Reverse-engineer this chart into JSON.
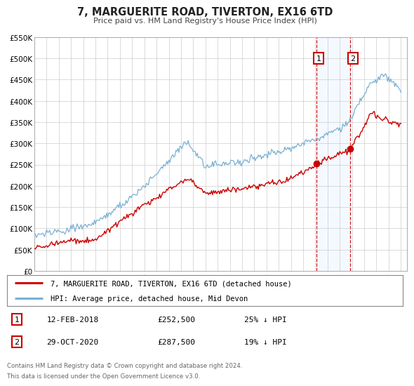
{
  "title": "7, MARGUERITE ROAD, TIVERTON, EX16 6TD",
  "subtitle": "Price paid vs. HM Land Registry's House Price Index (HPI)",
  "ylim": [
    0,
    550000
  ],
  "yticks": [
    0,
    50000,
    100000,
    150000,
    200000,
    250000,
    300000,
    350000,
    400000,
    450000,
    500000,
    550000
  ],
  "ytick_labels": [
    "£0",
    "£50K",
    "£100K",
    "£150K",
    "£200K",
    "£250K",
    "£300K",
    "£350K",
    "£400K",
    "£450K",
    "£500K",
    "£550K"
  ],
  "xlim_start": 1995.0,
  "xlim_end": 2025.5,
  "xticks": [
    1995,
    1996,
    1997,
    1998,
    1999,
    2000,
    2001,
    2002,
    2003,
    2004,
    2005,
    2006,
    2007,
    2008,
    2009,
    2010,
    2011,
    2012,
    2013,
    2014,
    2015,
    2016,
    2017,
    2018,
    2019,
    2020,
    2021,
    2022,
    2023,
    2024,
    2025
  ],
  "sale1_x": 2018.117,
  "sale1_y": 252500,
  "sale1_label": "1",
  "sale1_date": "12-FEB-2018",
  "sale1_price": "£252,500",
  "sale1_hpi": "25% ↓ HPI",
  "sale2_x": 2020.833,
  "sale2_y": 287500,
  "sale2_label": "2",
  "sale2_date": "29-OCT-2020",
  "sale2_price": "£287,500",
  "sale2_hpi": "19% ↓ HPI",
  "red_line_color": "#cc0000",
  "blue_line_color": "#7ab0d4",
  "vline_color": "#cc0000",
  "vshade_color": "#ddeeff",
  "background_color": "#ffffff",
  "grid_color": "#cccccc",
  "legend1_label": "7, MARGUERITE ROAD, TIVERTON, EX16 6TD (detached house)",
  "legend2_label": "HPI: Average price, detached house, Mid Devon",
  "footer1": "Contains HM Land Registry data © Crown copyright and database right 2024.",
  "footer2": "This data is licensed under the Open Government Licence v3.0."
}
